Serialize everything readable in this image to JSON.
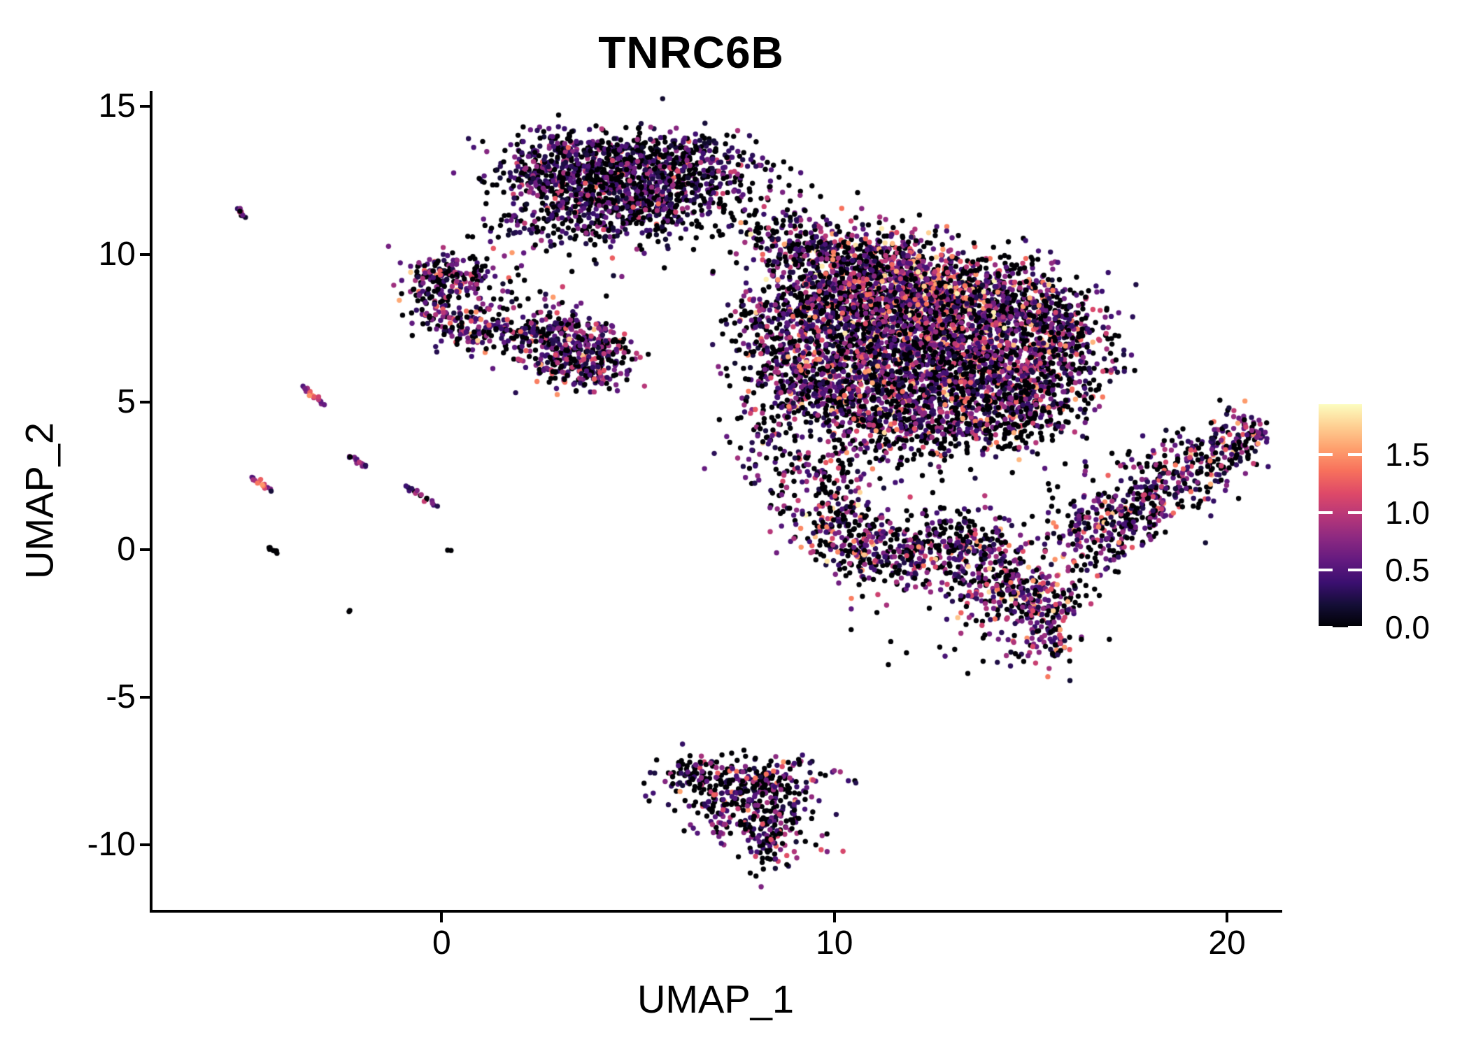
{
  "title": "TNRC6B",
  "axes": {
    "x": {
      "label": "UMAP_1",
      "ticks": [
        0,
        10,
        20
      ],
      "lim": [
        -7.4,
        21.37
      ]
    },
    "y": {
      "label": "UMAP_2",
      "ticks": [
        15,
        10,
        5,
        0,
        -5,
        -10
      ],
      "lim": [
        -12.24,
        15.53
      ]
    }
  },
  "colorbar": {
    "tick_labels": [
      "1.5",
      "1.0",
      "0.5",
      "0.0"
    ],
    "tick_values": [
      1.5,
      1.0,
      0.5,
      0.0
    ],
    "domain": [
      0,
      1.94
    ],
    "palette": "magma",
    "stops": [
      "#000004",
      "#140e36",
      "#3b0f70",
      "#641a80",
      "#8c2981",
      "#b73779",
      "#de4968",
      "#f7705c",
      "#fe9f6d",
      "#fecf92",
      "#fcfdbf"
    ]
  },
  "chart_data": {
    "type": "scatter",
    "title": "TNRC6B",
    "xlabel": "UMAP_1",
    "ylabel": "UMAP_2",
    "xlim": [
      -7.4,
      21.37
    ],
    "ylim": [
      -12.24,
      15.53
    ],
    "grid": false,
    "legend_position": "right",
    "color_scale": {
      "name": "magma",
      "domain": [
        0,
        1.94
      ]
    },
    "point_radius_px": 3.7,
    "seed": 42,
    "clusters": [
      {
        "c": [
          3.4,
          13.2
        ],
        "sx": 1.05,
        "sy": 0.55,
        "rot": -8,
        "n": 240,
        "p0": 0.45,
        "mu": 0.5
      },
      {
        "c": [
          4.9,
          13.3
        ],
        "sx": 1.25,
        "sy": 0.5,
        "rot": 4,
        "n": 260,
        "p0": 0.45,
        "mu": 0.5
      },
      {
        "c": [
          6.25,
          12.7
        ],
        "sx": 0.85,
        "sy": 0.6,
        "rot": 18,
        "n": 190,
        "p0": 0.45,
        "mu": 0.5
      },
      {
        "c": [
          2.95,
          12.35
        ],
        "sx": 0.9,
        "sy": 0.55,
        "rot": -12,
        "n": 200,
        "p0": 0.45,
        "mu": 0.5
      },
      {
        "c": [
          4.6,
          12.3
        ],
        "sx": 1.15,
        "sy": 0.6,
        "rot": 0,
        "n": 240,
        "p0": 0.45,
        "mu": 0.5
      },
      {
        "c": [
          5.85,
          11.9
        ],
        "sx": 0.8,
        "sy": 0.5,
        "rot": 8,
        "n": 140,
        "p0": 0.45,
        "mu": 0.5
      },
      {
        "c": [
          3.6,
          11.4
        ],
        "sx": 0.8,
        "sy": 0.5,
        "rot": -15,
        "n": 120,
        "p0": 0.45,
        "mu": 0.5
      },
      {
        "c": [
          4.9,
          11.2
        ],
        "sx": 0.7,
        "sy": 0.45,
        "rot": 0,
        "n": 90,
        "p0": 0.45,
        "mu": 0.5
      },
      {
        "c": [
          2.4,
          10.8
        ],
        "sx": 0.65,
        "sy": 0.45,
        "rot": -20,
        "n": 40,
        "p0": 0.55,
        "mu": 0.5
      },
      {
        "c": [
          7.55,
          12.5
        ],
        "sx": 0.8,
        "sy": 0.65,
        "rot": 0,
        "n": 60,
        "p0": 0.6,
        "mu": 0.5
      },
      {
        "c": [
          3.2,
          9.9
        ],
        "sx": 0.8,
        "sy": 0.45,
        "rot": -25,
        "n": 16,
        "p0": 0.6,
        "mu": 0.5
      },
      {
        "c": [
          5.7,
          10.7
        ],
        "sx": 1.1,
        "sy": 0.55,
        "rot": 0,
        "n": 22,
        "p0": 0.65,
        "mu": 0.5
      },
      {
        "c": [
          1.2,
          10.4
        ],
        "sx": 0.5,
        "sy": 0.5,
        "rot": 0,
        "n": 10,
        "p0": 0.5,
        "mu": 0.5
      },
      {
        "c": [
          -0.05,
          9.45
        ],
        "sx": 0.5,
        "sy": 0.42,
        "rot": 0,
        "n": 85,
        "p0": 0.38,
        "mu": 0.65
      },
      {
        "c": [
          0.6,
          9.1
        ],
        "sx": 0.5,
        "sy": 0.4,
        "rot": 0,
        "n": 70,
        "p0": 0.38,
        "mu": 0.65
      },
      {
        "c": [
          -0.15,
          8.45
        ],
        "sx": 0.42,
        "sy": 0.5,
        "rot": 0,
        "n": 70,
        "p0": 0.38,
        "mu": 0.65
      },
      {
        "c": [
          0.3,
          7.65
        ],
        "sx": 0.45,
        "sy": 0.42,
        "rot": 0,
        "n": 60,
        "p0": 0.38,
        "mu": 0.65
      },
      {
        "c": [
          0.95,
          7.25
        ],
        "sx": 0.5,
        "sy": 0.4,
        "rot": 0,
        "n": 55,
        "p0": 0.38,
        "mu": 0.65
      },
      {
        "c": [
          1.6,
          7.6
        ],
        "sx": 0.42,
        "sy": 0.42,
        "rot": 0,
        "n": 40,
        "p0": 0.38,
        "mu": 0.65
      },
      {
        "c": [
          1.95,
          8.6
        ],
        "sx": 0.55,
        "sy": 0.45,
        "rot": 0,
        "n": 20,
        "p0": 0.55,
        "mu": 0.6
      },
      {
        "c": [
          2.6,
          7.35
        ],
        "sx": 0.6,
        "sy": 0.5,
        "rot": 0,
        "n": 110,
        "p0": 0.4,
        "mu": 0.65
      },
      {
        "c": [
          3.3,
          6.95
        ],
        "sx": 0.7,
        "sy": 0.55,
        "rot": 0,
        "n": 150,
        "p0": 0.4,
        "mu": 0.65
      },
      {
        "c": [
          4.0,
          6.6
        ],
        "sx": 0.55,
        "sy": 0.5,
        "rot": 0,
        "n": 105,
        "p0": 0.4,
        "mu": 0.65
      },
      {
        "c": [
          3.2,
          6.15
        ],
        "sx": 0.6,
        "sy": 0.4,
        "rot": 0,
        "n": 75,
        "p0": 0.4,
        "mu": 0.65
      },
      {
        "c": [
          3.95,
          5.95
        ],
        "sx": 0.4,
        "sy": 0.35,
        "rot": 0,
        "n": 40,
        "p0": 0.4,
        "mu": 0.65
      },
      {
        "c": [
          9.3,
          10.2
        ],
        "sx": 0.8,
        "sy": 0.6,
        "rot": 0,
        "n": 170,
        "p0": 0.38,
        "mu": 0.7
      },
      {
        "c": [
          8.4,
          11.0
        ],
        "sx": 0.8,
        "sy": 0.5,
        "rot": 0,
        "n": 60,
        "p0": 0.5,
        "mu": 0.6
      },
      {
        "c": [
          10.4,
          9.7
        ],
        "sx": 1.0,
        "sy": 0.65,
        "rot": 0,
        "n": 260,
        "p0": 0.38,
        "mu": 0.7
      },
      {
        "c": [
          11.6,
          9.4
        ],
        "sx": 1.05,
        "sy": 0.7,
        "rot": 0,
        "n": 330,
        "p0": 0.38,
        "mu": 0.7
      },
      {
        "c": [
          12.5,
          8.7
        ],
        "sx": 0.9,
        "sy": 0.8,
        "rot": 0,
        "n": 370,
        "p0": 0.24,
        "mu": 0.95
      },
      {
        "c": [
          13.6,
          8.4
        ],
        "sx": 1.0,
        "sy": 0.75,
        "rot": 0,
        "n": 360,
        "p0": 0.38,
        "mu": 0.7
      },
      {
        "c": [
          14.9,
          8.0
        ],
        "sx": 0.9,
        "sy": 0.75,
        "rot": 0,
        "n": 310,
        "p0": 0.38,
        "mu": 0.75
      },
      {
        "c": [
          15.8,
          7.0
        ],
        "sx": 0.65,
        "sy": 0.9,
        "rot": 0,
        "n": 250,
        "p0": 0.38,
        "mu": 0.6
      },
      {
        "c": [
          13.0,
          7.1
        ],
        "sx": 1.25,
        "sy": 0.85,
        "rot": 0,
        "n": 430,
        "p0": 0.38,
        "mu": 0.7
      },
      {
        "c": [
          11.2,
          7.7
        ],
        "sx": 1.0,
        "sy": 0.8,
        "rot": 0,
        "n": 370,
        "p0": 0.38,
        "mu": 0.7
      },
      {
        "c": [
          9.6,
          8.4
        ],
        "sx": 0.9,
        "sy": 0.75,
        "rot": 0,
        "n": 290,
        "p0": 0.38,
        "mu": 0.7
      },
      {
        "c": [
          8.6,
          7.1
        ],
        "sx": 0.7,
        "sy": 0.9,
        "rot": 0,
        "n": 240,
        "p0": 0.45,
        "mu": 0.55
      },
      {
        "c": [
          10.3,
          6.3
        ],
        "sx": 0.9,
        "sy": 0.7,
        "rot": 0,
        "n": 290,
        "p0": 0.38,
        "mu": 0.7
      },
      {
        "c": [
          12.0,
          5.8
        ],
        "sx": 1.05,
        "sy": 0.7,
        "rot": 0,
        "n": 340,
        "p0": 0.48,
        "mu": 0.7
      },
      {
        "c": [
          13.9,
          6.0
        ],
        "sx": 1.0,
        "sy": 0.7,
        "rot": 0,
        "n": 290,
        "p0": 0.38,
        "mu": 0.7
      },
      {
        "c": [
          15.3,
          5.5
        ],
        "sx": 0.75,
        "sy": 0.65,
        "rot": 0,
        "n": 210,
        "p0": 0.38,
        "mu": 0.7
      },
      {
        "c": [
          9.4,
          5.3
        ],
        "sx": 0.75,
        "sy": 0.6,
        "rot": 0,
        "n": 190,
        "p0": 0.38,
        "mu": 0.7
      },
      {
        "c": [
          11.0,
          4.7
        ],
        "sx": 0.85,
        "sy": 0.6,
        "rot": 0,
        "n": 230,
        "p0": 0.45,
        "mu": 0.7
      },
      {
        "c": [
          12.8,
          4.5
        ],
        "sx": 0.95,
        "sy": 0.6,
        "rot": 0,
        "n": 250,
        "p0": 0.45,
        "mu": 0.7
      },
      {
        "c": [
          14.4,
          4.4
        ],
        "sx": 0.85,
        "sy": 0.55,
        "rot": 0,
        "n": 190,
        "p0": 0.5,
        "mu": 0.7
      },
      {
        "c": [
          11.5,
          3.5
        ],
        "sx": 1.3,
        "sy": 0.5,
        "rot": 0,
        "n": 110,
        "p0": 0.55,
        "mu": 0.6
      },
      {
        "c": [
          8.2,
          3.7
        ],
        "sx": 0.5,
        "sy": 1.0,
        "rot": 0,
        "n": 70,
        "p0": 0.6,
        "mu": 0.5
      },
      {
        "c": [
          9.7,
          2.3
        ],
        "sx": 0.65,
        "sy": 0.8,
        "rot": 0,
        "n": 120,
        "p0": 0.5,
        "mu": 0.6
      },
      {
        "c": [
          10.3,
          0.7
        ],
        "sx": 0.75,
        "sy": 0.75,
        "rot": 0,
        "n": 190,
        "p0": 0.38,
        "mu": 0.75
      },
      {
        "c": [
          11.5,
          -0.2
        ],
        "sx": 0.85,
        "sy": 0.6,
        "rot": 0,
        "n": 180,
        "p0": 0.38,
        "mu": 0.7
      },
      {
        "c": [
          12.8,
          0.4
        ],
        "sx": 0.8,
        "sy": 0.6,
        "rot": 0,
        "n": 150,
        "p0": 0.5,
        "mu": 0.65
      },
      {
        "c": [
          13.9,
          -0.5
        ],
        "sx": 0.85,
        "sy": 0.65,
        "rot": 0,
        "n": 210,
        "p0": 0.38,
        "mu": 0.7
      },
      {
        "c": [
          14.9,
          -1.7
        ],
        "sx": 0.75,
        "sy": 0.7,
        "rot": 0,
        "n": 220,
        "p0": 0.38,
        "mu": 0.8
      },
      {
        "c": [
          15.4,
          -2.9
        ],
        "sx": 0.45,
        "sy": 0.55,
        "rot": 0,
        "n": 85,
        "p0": 0.38,
        "mu": 0.7
      },
      {
        "c": [
          16.6,
          1.5
        ],
        "sx": 0.75,
        "sy": 1.1,
        "rot": 0,
        "n": 60,
        "p0": 0.6,
        "mu": 0.5
      },
      {
        "c": [
          12.6,
          -3.2
        ],
        "sx": 1.2,
        "sy": 0.55,
        "rot": 0,
        "n": 20,
        "p0": 0.7,
        "mu": 0.4
      },
      {
        "c": [
          16.6,
          0.3
        ],
        "sx": 0.55,
        "sy": 0.5,
        "rot": -35,
        "n": 105,
        "p0": 0.4,
        "mu": 0.65
      },
      {
        "c": [
          17.5,
          1.2
        ],
        "sx": 0.6,
        "sy": 0.55,
        "rot": -35,
        "n": 125,
        "p0": 0.4,
        "mu": 0.65
      },
      {
        "c": [
          18.4,
          2.1
        ],
        "sx": 0.6,
        "sy": 0.55,
        "rot": -35,
        "n": 125,
        "p0": 0.4,
        "mu": 0.65
      },
      {
        "c": [
          19.3,
          2.95
        ],
        "sx": 0.6,
        "sy": 0.5,
        "rot": -35,
        "n": 115,
        "p0": 0.4,
        "mu": 0.65
      },
      {
        "c": [
          20.1,
          3.6
        ],
        "sx": 0.5,
        "sy": 0.45,
        "rot": -35,
        "n": 95,
        "p0": 0.4,
        "mu": 0.65
      },
      {
        "c": [
          20.6,
          4.15
        ],
        "sx": 0.3,
        "sy": 0.3,
        "rot": 0,
        "n": 28,
        "p0": 0.4,
        "mu": 0.65
      },
      {
        "c": [
          7.0,
          -7.8
        ],
        "sx": 0.75,
        "sy": 0.45,
        "rot": 0,
        "n": 125,
        "p0": 0.45,
        "mu": 0.6
      },
      {
        "c": [
          8.3,
          -7.9
        ],
        "sx": 0.8,
        "sy": 0.5,
        "rot": 0,
        "n": 145,
        "p0": 0.45,
        "mu": 0.6
      },
      {
        "c": [
          7.6,
          -8.9
        ],
        "sx": 0.7,
        "sy": 0.5,
        "rot": 0,
        "n": 115,
        "p0": 0.45,
        "mu": 0.6
      },
      {
        "c": [
          8.5,
          -9.3
        ],
        "sx": 0.55,
        "sy": 0.5,
        "rot": 0,
        "n": 85,
        "p0": 0.45,
        "mu": 0.6
      },
      {
        "c": [
          8.3,
          -10.1
        ],
        "sx": 0.35,
        "sy": 0.4,
        "rot": 0,
        "n": 42,
        "p0": 0.45,
        "mu": 0.6
      },
      {
        "c": [
          6.2,
          -7.6
        ],
        "sx": 0.3,
        "sy": 0.3,
        "rot": 0,
        "n": 26,
        "p0": 0.45,
        "mu": 0.6
      },
      {
        "c": [
          9.7,
          -7.5
        ],
        "sx": 0.35,
        "sy": 0.3,
        "rot": 0,
        "n": 8,
        "p0": 0.75,
        "mu": 0.5
      }
    ],
    "streaks": [
      {
        "from": [
          -5.2,
          11.55
        ],
        "to": [
          -4.98,
          11.3
        ],
        "n": 10,
        "peak": 1.1,
        "p0": 0.1
      },
      {
        "from": [
          -3.5,
          5.5
        ],
        "to": [
          -3.02,
          4.95
        ],
        "n": 16,
        "peak": 1.55,
        "p0": 0.05
      },
      {
        "from": [
          -2.35,
          3.15
        ],
        "to": [
          -1.9,
          2.78
        ],
        "n": 14,
        "peak": 0.95,
        "p0": 0.1
      },
      {
        "from": [
          -4.82,
          2.45
        ],
        "to": [
          -4.35,
          1.98
        ],
        "n": 14,
        "peak": 1.45,
        "p0": 0.05
      },
      {
        "from": [
          -0.9,
          2.1
        ],
        "to": [
          -0.15,
          1.52
        ],
        "n": 16,
        "peak": 1.0,
        "p0": 0.2
      },
      {
        "from": [
          -4.45,
          0.08
        ],
        "to": [
          -4.22,
          -0.1
        ],
        "n": 8,
        "peak": 0,
        "p0": 1
      },
      {
        "from": [
          -2.42,
          -2.08
        ],
        "to": [
          -2.36,
          -2.12
        ],
        "n": 2,
        "peak": 0,
        "p0": 1
      },
      {
        "from": [
          0.18,
          -0.03
        ],
        "to": [
          0.26,
          -0.08
        ],
        "n": 2,
        "peak": 0,
        "p0": 1
      }
    ]
  }
}
